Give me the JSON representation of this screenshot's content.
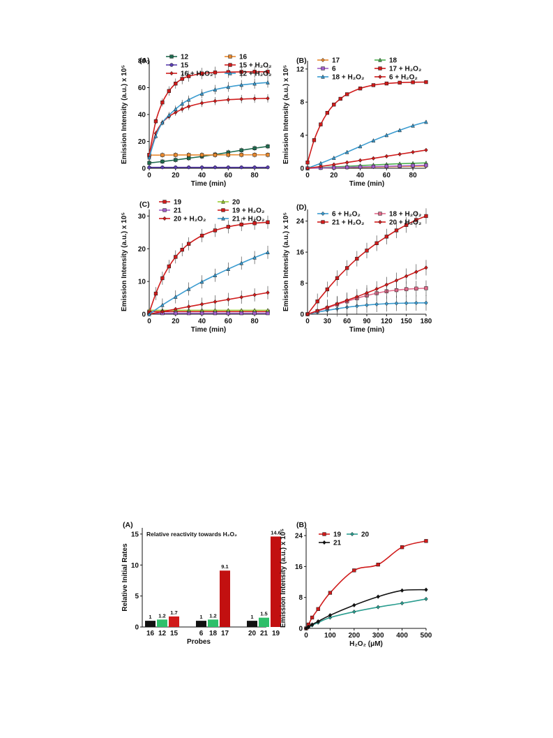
{
  "chart_data": [
    {
      "id": "fig1A",
      "type": "line",
      "panel_label": "(A)",
      "xlabel": "Time (min)",
      "ylabel": "Emission Intensity (a.u.) x 10⁵",
      "xlim": [
        0,
        90
      ],
      "ylim": [
        0,
        80
      ],
      "xticks": [
        0,
        20,
        40,
        60,
        80
      ],
      "yticks": [
        0,
        20,
        40,
        60,
        80
      ],
      "legend_position": "top",
      "series": [
        {
          "name": "12",
          "color": "#1f6b4f",
          "marker": "square",
          "x": [
            0,
            10,
            20,
            30,
            40,
            50,
            60,
            70,
            80,
            90
          ],
          "y": [
            4,
            5,
            6.2,
            7.5,
            8.8,
            10.2,
            11.8,
            13.4,
            14.9,
            16.3
          ]
        },
        {
          "name": "16",
          "color": "#e8882d",
          "marker": "square",
          "x": [
            0,
            10,
            20,
            30,
            40,
            50,
            60,
            70,
            80,
            90
          ],
          "y": [
            9.8,
            9.8,
            9.9,
            9.9,
            9.9,
            9.9,
            10,
            10,
            10,
            10
          ]
        },
        {
          "name": "15",
          "color": "#5a3fb0",
          "marker": "circle",
          "x": [
            0,
            10,
            20,
            30,
            40,
            50,
            60,
            70,
            80,
            90
          ],
          "y": [
            0.7,
            0.7,
            0.7,
            0.7,
            0.7,
            0.7,
            0.7,
            0.7,
            0.7,
            0.7
          ]
        },
        {
          "name": "15 + H₂O₂",
          "color": "#d01b1b",
          "marker": "square",
          "x": [
            0,
            5,
            10,
            15,
            20,
            25,
            30,
            40,
            50,
            60,
            70,
            80,
            90
          ],
          "y": [
            10,
            35,
            49,
            57.5,
            63,
            66.5,
            68.5,
            70.5,
            71.3,
            71.6,
            71.7,
            71.8,
            71.8
          ]
        },
        {
          "name": "16 + H₂O₂",
          "color": "#d01b1b",
          "marker": "diamond",
          "x": [
            0,
            5,
            10,
            15,
            20,
            25,
            30,
            40,
            50,
            60,
            70,
            80,
            90
          ],
          "y": [
            8,
            26,
            34,
            38.5,
            41.5,
            44,
            46,
            48.5,
            50,
            51,
            51.5,
            51.8,
            52
          ]
        },
        {
          "name": "12 + H₂O₂",
          "color": "#3a9bd0",
          "marker": "triangle",
          "x": [
            0,
            5,
            10,
            15,
            20,
            25,
            30,
            40,
            50,
            60,
            70,
            80,
            90
          ],
          "y": [
            8,
            24,
            34,
            39.5,
            44,
            48,
            51,
            55.5,
            58.5,
            60.5,
            62,
            63,
            63.8
          ]
        }
      ]
    },
    {
      "id": "fig1B",
      "type": "line",
      "panel_label": "(B)",
      "xlabel": "Time (min)",
      "ylabel": "Emission Intensity (a.u.) x 10⁵",
      "xlim": [
        0,
        90
      ],
      "ylim": [
        0,
        13
      ],
      "xticks": [
        0,
        20,
        40,
        60,
        80
      ],
      "yticks": [
        0,
        4,
        8,
        12
      ],
      "legend_position": "top",
      "series": [
        {
          "name": "17",
          "color": "#e8882d",
          "marker": "diamond",
          "x": [
            0,
            10,
            20,
            30,
            40,
            50,
            60,
            70,
            80,
            90
          ],
          "y": [
            0,
            0.03,
            0.06,
            0.09,
            0.12,
            0.15,
            0.18,
            0.21,
            0.24,
            0.27
          ]
        },
        {
          "name": "18",
          "color": "#4caf50",
          "marker": "triangle",
          "x": [
            0,
            10,
            20,
            30,
            40,
            50,
            60,
            70,
            80,
            90
          ],
          "y": [
            0,
            0.08,
            0.16,
            0.24,
            0.32,
            0.4,
            0.48,
            0.55,
            0.6,
            0.65
          ]
        },
        {
          "name": "6",
          "color": "#a05fc8",
          "marker": "square",
          "x": [
            0,
            10,
            20,
            30,
            40,
            50,
            60,
            70,
            80,
            90
          ],
          "y": [
            0,
            0.04,
            0.08,
            0.12,
            0.16,
            0.2,
            0.24,
            0.28,
            0.32,
            0.36
          ]
        },
        {
          "name": "17 + H₂O₂",
          "color": "#d01b1b",
          "marker": "square",
          "x": [
            0,
            5,
            10,
            15,
            20,
            25,
            30,
            40,
            50,
            60,
            70,
            80,
            90
          ],
          "y": [
            0.7,
            3.4,
            5.3,
            6.7,
            7.7,
            8.4,
            8.95,
            9.65,
            10.05,
            10.25,
            10.35,
            10.4,
            10.42
          ]
        },
        {
          "name": "18 + H₂O₂",
          "color": "#3a9bd0",
          "marker": "triangle",
          "x": [
            0,
            10,
            20,
            30,
            40,
            50,
            60,
            70,
            80,
            90
          ],
          "y": [
            0,
            0.6,
            1.25,
            1.95,
            2.65,
            3.35,
            4,
            4.6,
            5.15,
            5.6
          ]
        },
        {
          "name": "6 + H₂O₂",
          "color": "#d01b1b",
          "marker": "diamond",
          "x": [
            0,
            10,
            20,
            30,
            40,
            50,
            60,
            70,
            80,
            90
          ],
          "y": [
            0,
            0.22,
            0.45,
            0.7,
            0.95,
            1.2,
            1.45,
            1.7,
            1.95,
            2.2
          ]
        }
      ]
    },
    {
      "id": "fig1C",
      "type": "line",
      "panel_label": "(C)",
      "xlabel": "Time (min)",
      "ylabel": "Emission Intensity (a.u.) x 10⁵",
      "xlim": [
        0,
        90
      ],
      "ylim": [
        0,
        32
      ],
      "xticks": [
        0,
        20,
        40,
        60,
        80
      ],
      "yticks": [
        0,
        10,
        20,
        30
      ],
      "legend_position": "top",
      "series": [
        {
          "name": "19",
          "color": "#d01b1b",
          "marker": "square",
          "x": [
            0,
            10,
            20,
            30,
            40,
            50,
            60,
            70,
            80,
            90
          ],
          "y": [
            0.8,
            0.8,
            0.8,
            0.8,
            0.8,
            0.8,
            0.8,
            0.8,
            0.8,
            0.8
          ]
        },
        {
          "name": "20",
          "color": "#9acd32",
          "marker": "triangle",
          "x": [
            0,
            10,
            20,
            30,
            40,
            50,
            60,
            70,
            80,
            90
          ],
          "y": [
            1.2,
            1.2,
            1.2,
            1.2,
            1.2,
            1.2,
            1.2,
            1.2,
            1.2,
            1.2
          ]
        },
        {
          "name": "21",
          "color": "#a05fc8",
          "marker": "square",
          "x": [
            0,
            10,
            20,
            30,
            40,
            50,
            60,
            70,
            80,
            90
          ],
          "y": [
            0.3,
            0.3,
            0.3,
            0.3,
            0.3,
            0.3,
            0.3,
            0.3,
            0.3,
            0.3
          ]
        },
        {
          "name": "19 + H₂O₂",
          "color": "#d01b1b",
          "marker": "square",
          "x": [
            0,
            5,
            10,
            15,
            20,
            25,
            30,
            40,
            50,
            60,
            70,
            80,
            90
          ],
          "y": [
            0.5,
            6.3,
            11,
            14.6,
            17.5,
            19.7,
            21.5,
            24,
            25.6,
            26.7,
            27.4,
            27.8,
            28.1
          ]
        },
        {
          "name": "20 + H₂O₂",
          "color": "#d01b1b",
          "marker": "diamond",
          "x": [
            0,
            10,
            20,
            30,
            40,
            50,
            60,
            70,
            80,
            90
          ],
          "y": [
            0,
            0.8,
            1.55,
            2.3,
            3.05,
            3.8,
            4.5,
            5.2,
            5.9,
            6.6
          ]
        },
        {
          "name": "21 + H₂O₂",
          "color": "#3a9bd0",
          "marker": "triangle",
          "x": [
            0,
            10,
            20,
            30,
            40,
            50,
            60,
            70,
            80,
            90
          ],
          "y": [
            0,
            2.8,
            5.3,
            7.7,
            9.9,
            11.9,
            13.8,
            15.6,
            17.3,
            18.9
          ]
        }
      ]
    },
    {
      "id": "fig1D",
      "type": "line",
      "panel_label": "(D)",
      "xlabel": "Time (min)",
      "ylabel": "Emission Intensity (a.u.) x 10⁵",
      "xlim": [
        0,
        180
      ],
      "ylim": [
        0,
        27
      ],
      "xticks": [
        0,
        30,
        60,
        90,
        120,
        150,
        180
      ],
      "yticks": [
        0,
        8,
        16,
        24
      ],
      "legend_position": "top",
      "series": [
        {
          "name": "6 + H₂O₂",
          "color": "#3a9bd0",
          "marker": "diamond",
          "x": [
            0,
            15,
            30,
            45,
            60,
            75,
            90,
            105,
            120,
            135,
            150,
            165,
            180
          ],
          "y": [
            0,
            0.5,
            1,
            1.4,
            1.8,
            2.1,
            2.35,
            2.55,
            2.7,
            2.8,
            2.85,
            2.9,
            2.92
          ]
        },
        {
          "name": "18 + H₂O₂",
          "color": "#e06a8a",
          "marker": "square",
          "x": [
            0,
            15,
            30,
            45,
            60,
            75,
            90,
            105,
            120,
            135,
            150,
            165,
            180
          ],
          "y": [
            0,
            0.8,
            1.6,
            2.5,
            3.3,
            4.1,
            4.8,
            5.4,
            5.9,
            6.2,
            6.45,
            6.6,
            6.7
          ]
        },
        {
          "name": "21 + H₂O₂",
          "color": "#d01b1b",
          "marker": "square",
          "x": [
            0,
            15,
            30,
            45,
            60,
            75,
            90,
            105,
            120,
            135,
            150,
            165,
            180
          ],
          "y": [
            0,
            3.3,
            6.4,
            9.3,
            11.9,
            14.3,
            16.4,
            18.3,
            20,
            21.6,
            23,
            24.3,
            25.3
          ]
        },
        {
          "name": "20 + H₂O₂",
          "color": "#d01b1b",
          "marker": "diamond",
          "x": [
            0,
            15,
            30,
            45,
            60,
            75,
            90,
            105,
            120,
            135,
            150,
            165,
            180
          ],
          "y": [
            0,
            0.9,
            1.8,
            2.7,
            3.6,
            4.5,
            5.5,
            6.5,
            7.6,
            8.7,
            9.8,
            10.9,
            12
          ]
        }
      ]
    },
    {
      "id": "fig2A",
      "type": "bar",
      "panel_label": "(A)",
      "annotation": "Relative reactivity towards H₂O₂",
      "xlabel": "Probes",
      "ylabel": "Relative Initial Rates",
      "ylim": [
        0,
        16
      ],
      "yticks": [
        0,
        5,
        10,
        15
      ],
      "categories": [
        "16",
        "12",
        "15",
        "6",
        "18",
        "17",
        "20",
        "21",
        "19"
      ],
      "values": [
        1,
        1.2,
        1.7,
        1,
        1.2,
        9.1,
        1,
        1.5,
        14.6
      ],
      "value_labels": [
        "1",
        "1.2",
        "1.7",
        "1",
        "1.2",
        "9.1",
        "1",
        "1.5",
        "14.6"
      ],
      "colors": [
        "#111111",
        "#2fbf6a",
        "#d01b1b",
        "#111111",
        "#2fbf6a",
        "#c21010",
        "#111111",
        "#2fbf6a",
        "#c21010"
      ]
    },
    {
      "id": "fig2B",
      "type": "line",
      "panel_label": "(B)",
      "xlabel": "H₂O₂ (μM)",
      "ylabel": "Emission Intensity (a.u.) x 10⁵",
      "xlim": [
        0,
        500
      ],
      "ylim": [
        0,
        26
      ],
      "xticks": [
        0,
        100,
        200,
        300,
        400,
        500
      ],
      "yticks": [
        0,
        8,
        16,
        24
      ],
      "legend_position": "top",
      "series": [
        {
          "name": "19",
          "color": "#d01b1b",
          "marker": "square",
          "x": [
            0,
            10,
            25,
            50,
            100,
            200,
            300,
            400,
            500
          ],
          "y": [
            0,
            1,
            2.8,
            5,
            9.2,
            15,
            16.5,
            21,
            22.6
          ]
        },
        {
          "name": "20",
          "color": "#2a9d8f",
          "marker": "diamond",
          "x": [
            0,
            10,
            25,
            50,
            100,
            200,
            300,
            400,
            500
          ],
          "y": [
            0,
            0.3,
            0.8,
            1.5,
            2.8,
            4.3,
            5.5,
            6.5,
            7.6
          ]
        },
        {
          "name": "21",
          "color": "#111111",
          "marker": "diamond",
          "x": [
            0,
            10,
            25,
            50,
            100,
            200,
            300,
            400,
            500
          ],
          "y": [
            0,
            0.4,
            1,
            1.8,
            3.4,
            6,
            8.2,
            9.8,
            10
          ]
        }
      ]
    }
  ]
}
